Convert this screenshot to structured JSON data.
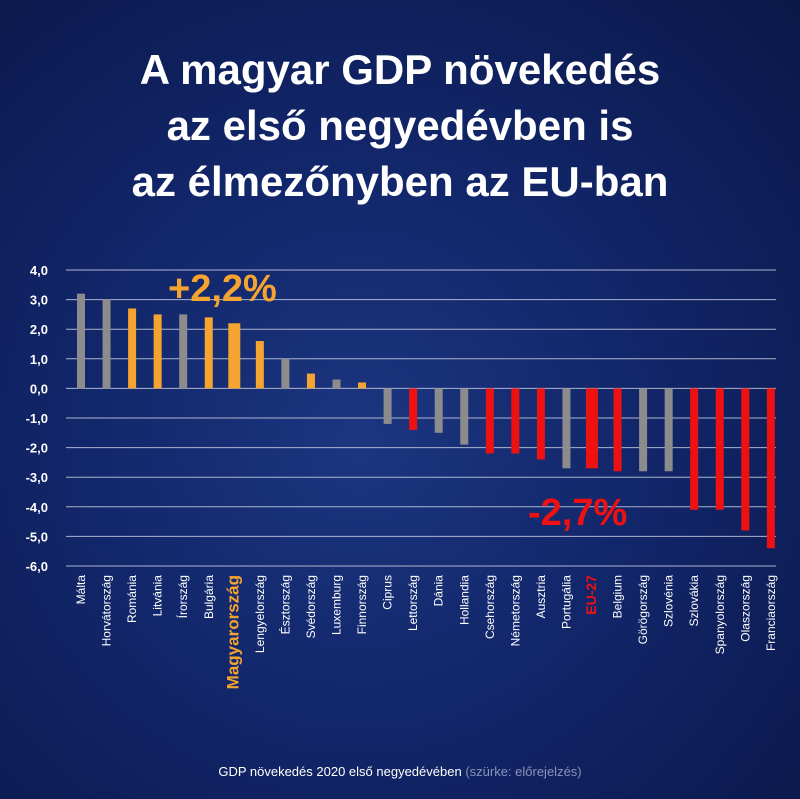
{
  "title_lines": [
    "A magyar GDP növekedés",
    "az első negyedévben is",
    "az élmezőnyben az EU-ban"
  ],
  "footer": {
    "main": "GDP növekedés 2020 első negyedévében",
    "note": "(szürke: előrejelzés)"
  },
  "colors": {
    "orange": "#f5a431",
    "red": "#ee1111",
    "gray": "#8c8c8c",
    "grid": "#c7cde0"
  },
  "chart_data": {
    "type": "bar",
    "title": "",
    "xlabel": "",
    "ylabel": "",
    "ylim": [
      -6.0,
      4.0
    ],
    "yticks": [
      "4,0",
      "3,0",
      "2,0",
      "1,0",
      "0,0",
      "-1,0",
      "-2,0",
      "-3,0",
      "-4,0",
      "-5,0",
      "-6,0"
    ],
    "ytick_values": [
      4,
      3,
      2,
      1,
      0,
      -1,
      -2,
      -3,
      -4,
      -5,
      -6
    ],
    "grid": true,
    "categories": [
      "Málta",
      "Horvátország",
      "Románia",
      "Litvánia",
      "Írország",
      "Bulgária",
      "Magyarország",
      "Lengyelország",
      "Észtország",
      "Svédország",
      "Luxemburg",
      "Finnország",
      "Ciprus",
      "Lettország",
      "Dánia",
      "Hollandia",
      "Csehország",
      "Németország",
      "Ausztria",
      "Portugália",
      "EU-27",
      "Belgium",
      "Görögország",
      "Szlovénia",
      "Szlovákia",
      "Spanyolország",
      "Olaszország",
      "Franciaország"
    ],
    "values": [
      3.2,
      3.0,
      2.7,
      2.5,
      2.5,
      2.4,
      2.2,
      1.6,
      1.0,
      0.5,
      0.3,
      0.2,
      -1.2,
      -1.4,
      -1.5,
      -1.9,
      -2.2,
      -2.2,
      -2.4,
      -2.7,
      -2.7,
      -2.8,
      -2.8,
      -2.8,
      -4.1,
      -4.1,
      -4.8,
      -5.4
    ],
    "bar_colors": [
      "gray",
      "gray",
      "orange",
      "orange",
      "gray",
      "orange",
      "orange",
      "orange",
      "gray",
      "orange",
      "gray",
      "orange",
      "gray",
      "red",
      "gray",
      "gray",
      "red",
      "red",
      "red",
      "gray",
      "red",
      "red",
      "gray",
      "gray",
      "red",
      "red",
      "red",
      "red"
    ],
    "highlighted": [
      "Magyarország",
      "EU-27"
    ],
    "annotations": [
      {
        "text": "+2,2%",
        "target": "Magyarország",
        "color": "orange"
      },
      {
        "text": "-2,7%",
        "target": "EU-27",
        "color": "red"
      }
    ]
  }
}
